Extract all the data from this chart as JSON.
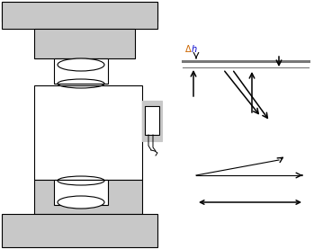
{
  "bg_color": "#ffffff",
  "gray_color": "#c8c8c8",
  "outline_color": "#000000",
  "figsize": [
    3.49,
    2.77
  ],
  "dpi": 100,
  "delta_color": "#cc6600",
  "h_color": "#0000cc",
  "arrow_gray": "#555555"
}
